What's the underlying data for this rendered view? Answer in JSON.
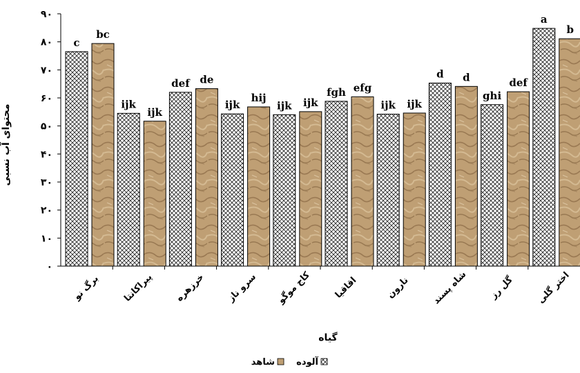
{
  "chart_data": {
    "type": "bar",
    "title": "",
    "xlabel": "گیاه",
    "ylabel": "محتوای آب نسبی",
    "ylim": [
      0,
      90
    ],
    "yticks": [
      0,
      10,
      20,
      30,
      40,
      50,
      60,
      70,
      80,
      90
    ],
    "ytick_labels": [
      "۰",
      "۱۰",
      "۲۰",
      "۳۰",
      "۴۰",
      "۵۰",
      "۶۰",
      "۷۰",
      "۸۰",
      "۹۰"
    ],
    "categories": [
      "برگ نو",
      "پیراکانتا",
      "خرزهره",
      "سرو ناز",
      "کاج موگو",
      "اقاقیا",
      "نارون",
      "شاه پسند",
      "گل رز",
      "اختر گلی"
    ],
    "series": [
      {
        "name": "آلوده",
        "color": "#ffffff",
        "pattern": "crosshatch",
        "values": [
          76.5,
          54.5,
          62.0,
          54.3,
          54.0,
          58.8,
          54.2,
          65.3,
          57.6,
          84.8
        ],
        "labels": [
          "c",
          "ijk",
          "def",
          "ijk",
          "ijk",
          "fgh",
          "ijk",
          "d",
          "ghi",
          "a"
        ]
      },
      {
        "name": "شاهد",
        "color": "#b8986c",
        "pattern": "sand-texture",
        "values": [
          79.4,
          51.7,
          63.3,
          56.8,
          55.1,
          60.4,
          54.6,
          64.1,
          62.2,
          81.1
        ],
        "labels": [
          "bc",
          "ijk",
          "de",
          "hij",
          "ijk",
          "efg",
          "ijk",
          "d",
          "def",
          "b"
        ]
      }
    ],
    "legend": {
      "position": "bottom",
      "items": [
        "شاهد",
        "آلوده"
      ]
    },
    "grid": false
  }
}
